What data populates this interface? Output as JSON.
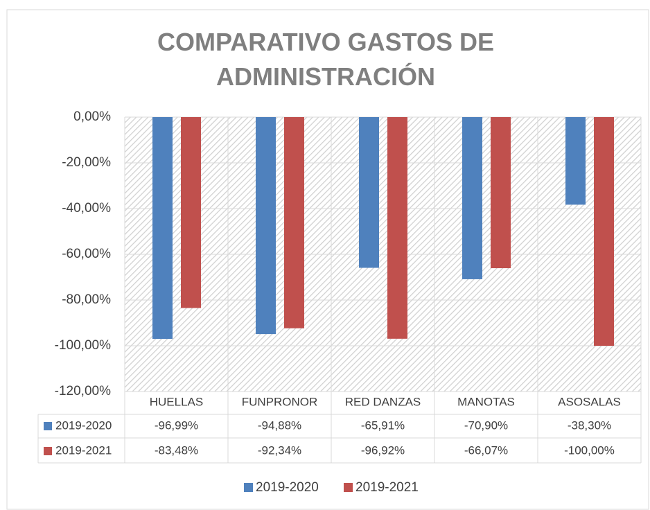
{
  "chart_data": {
    "type": "bar",
    "title": "COMPARATIVO GASTOS DE ADMINISTRACIÓN",
    "categories": [
      "HUELLAS",
      "FUNPRONOR",
      "RED DANZAS",
      "MANOTAS",
      "ASOSALAS"
    ],
    "series": [
      {
        "name": "2019-2020",
        "color": "#4f81bd",
        "values": [
          -96.99,
          -94.88,
          -65.91,
          -70.9,
          -38.3
        ],
        "value_labels": [
          "-96,99%",
          "-94,88%",
          "-65,91%",
          "-70,90%",
          "-38,30%"
        ]
      },
      {
        "name": "2019-2021",
        "color": "#c0504d",
        "values": [
          -83.48,
          -92.34,
          -96.92,
          -66.07,
          -100.0
        ],
        "value_labels": [
          "-83,48%",
          "-92,34%",
          "-96,92%",
          "-66,07%",
          "-100,00%"
        ]
      }
    ],
    "ylim": [
      -120,
      0
    ],
    "yticks": [
      {
        "value": 0,
        "label": "0,00%"
      },
      {
        "value": -20,
        "label": "-20,00%"
      },
      {
        "value": -40,
        "label": "-40,00%"
      },
      {
        "value": -60,
        "label": "-60,00%"
      },
      {
        "value": -80,
        "label": "-80,00%"
      },
      {
        "value": -100,
        "label": "-100,00%"
      },
      {
        "value": -120,
        "label": "-120,00%"
      }
    ],
    "grid": true,
    "legend": "bottom",
    "data_table": true
  }
}
